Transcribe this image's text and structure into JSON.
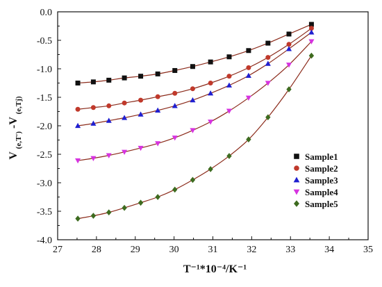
{
  "chart_data": {
    "type": "scatter",
    "title": "",
    "xlabel": "T⁻¹*10⁻⁴/K⁻¹",
    "ylabel": {
      "base": "V",
      "sub1": "(e,T')",
      "mid": "-V",
      "sub2": "(e,Tj)"
    },
    "xlim": [
      27,
      35
    ],
    "ylim": [
      -4.0,
      0.0
    ],
    "x_ticks": [
      "27",
      "28",
      "29",
      "30",
      "31",
      "32",
      "33",
      "34",
      "35"
    ],
    "y_ticks": [
      "0.0",
      "-0.5",
      "-1.0",
      "-1.5",
      "-2.0",
      "-2.5",
      "-3.0",
      "-3.5",
      "-4.0"
    ],
    "legend_position": "bottom-right",
    "fit_line_color": "#8b2a1a",
    "x": [
      27.52,
      27.92,
      28.32,
      28.72,
      29.14,
      29.58,
      30.02,
      30.48,
      30.94,
      31.42,
      31.92,
      32.42,
      32.96,
      33.54
    ],
    "series": [
      {
        "name": "Sample1",
        "marker": "square",
        "color": "#111111",
        "values": [
          -1.25,
          -1.23,
          -1.2,
          -1.16,
          -1.13,
          -1.09,
          -1.03,
          -0.96,
          -0.88,
          -0.79,
          -0.68,
          -0.55,
          -0.39,
          -0.22
        ]
      },
      {
        "name": "Sample2",
        "marker": "circle",
        "color": "#c0392b",
        "values": [
          -1.71,
          -1.68,
          -1.65,
          -1.6,
          -1.55,
          -1.49,
          -1.43,
          -1.35,
          -1.25,
          -1.13,
          -0.98,
          -0.8,
          -0.57,
          -0.29
        ]
      },
      {
        "name": "Sample3",
        "marker": "triangle-up",
        "color": "#1f1fd0",
        "values": [
          -2.0,
          -1.96,
          -1.91,
          -1.86,
          -1.8,
          -1.73,
          -1.65,
          -1.55,
          -1.43,
          -1.29,
          -1.12,
          -0.91,
          -0.65,
          -0.36
        ]
      },
      {
        "name": "Sample4",
        "marker": "triangle-down",
        "color": "#d633e0",
        "values": [
          -2.61,
          -2.57,
          -2.52,
          -2.46,
          -2.39,
          -2.31,
          -2.21,
          -2.08,
          -1.93,
          -1.74,
          -1.51,
          -1.25,
          -0.93,
          -0.52
        ]
      },
      {
        "name": "Sample5",
        "marker": "diamond",
        "color": "#3d6b1f",
        "values": [
          -3.63,
          -3.58,
          -3.52,
          -3.44,
          -3.35,
          -3.25,
          -3.12,
          -2.95,
          -2.76,
          -2.53,
          -2.24,
          -1.85,
          -1.36,
          -0.77
        ]
      }
    ]
  }
}
